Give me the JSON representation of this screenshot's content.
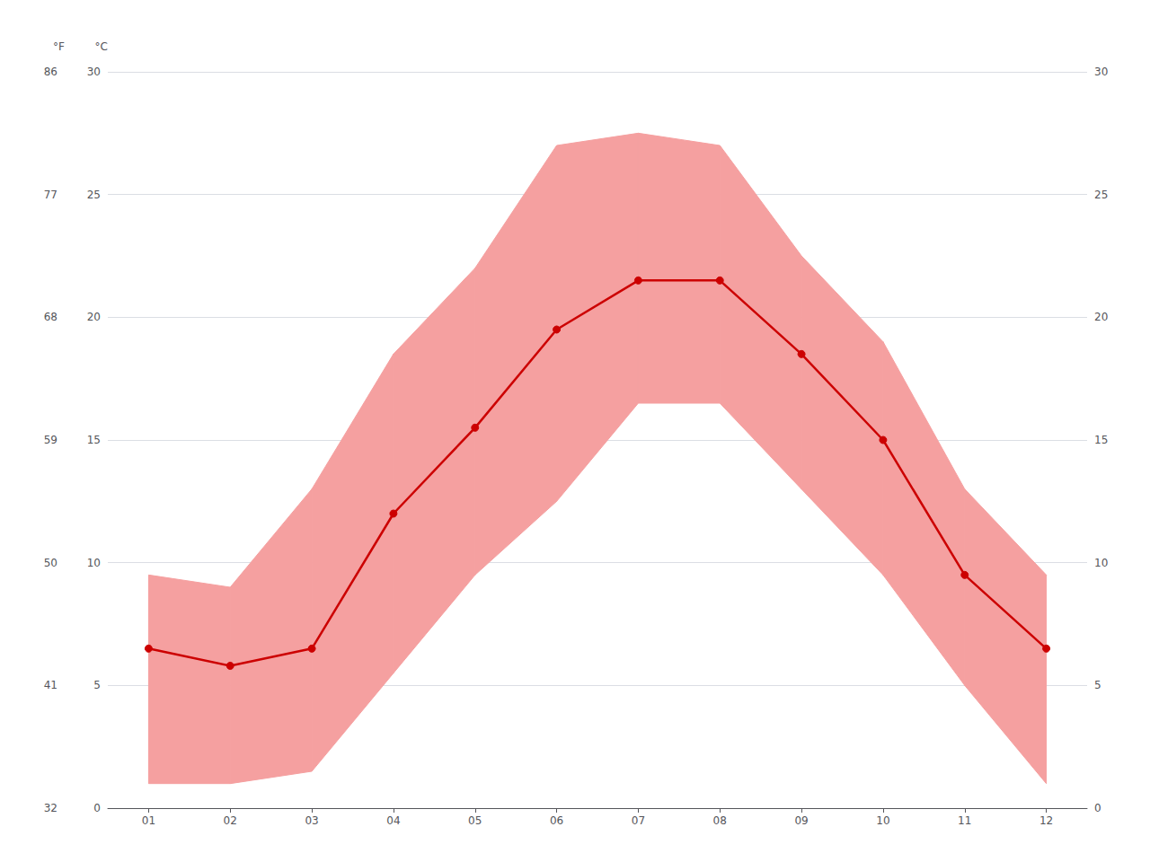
{
  "chart_data": {
    "type": "line",
    "categories": [
      "01",
      "02",
      "03",
      "04",
      "05",
      "06",
      "07",
      "08",
      "09",
      "10",
      "11",
      "12"
    ],
    "series": [
      {
        "type": "band",
        "lower": [
          1.0,
          1.0,
          1.5,
          5.5,
          9.5,
          12.5,
          16.5,
          16.5,
          13.0,
          9.5,
          5.0,
          1.0
        ],
        "upper": [
          9.5,
          9.0,
          13.0,
          18.5,
          22.0,
          27.0,
          27.5,
          27.0,
          22.5,
          19.0,
          13.0,
          9.5
        ],
        "color": "#f5a0a0"
      },
      {
        "type": "line",
        "values": [
          6.5,
          5.8,
          6.5,
          12.0,
          15.5,
          19.5,
          21.5,
          21.5,
          18.5,
          15.0,
          9.5,
          6.5
        ],
        "color": "#cc0000",
        "marker": "circle"
      }
    ],
    "ylabel": "°C",
    "y2label": "°F",
    "ylim": [
      0,
      30
    ],
    "yticks": [
      0,
      5,
      10,
      15,
      20,
      25,
      30
    ],
    "y2lim": [
      32,
      86
    ],
    "y2ticks": [
      32,
      41,
      50,
      59,
      68,
      77,
      86
    ],
    "grid": true
  }
}
